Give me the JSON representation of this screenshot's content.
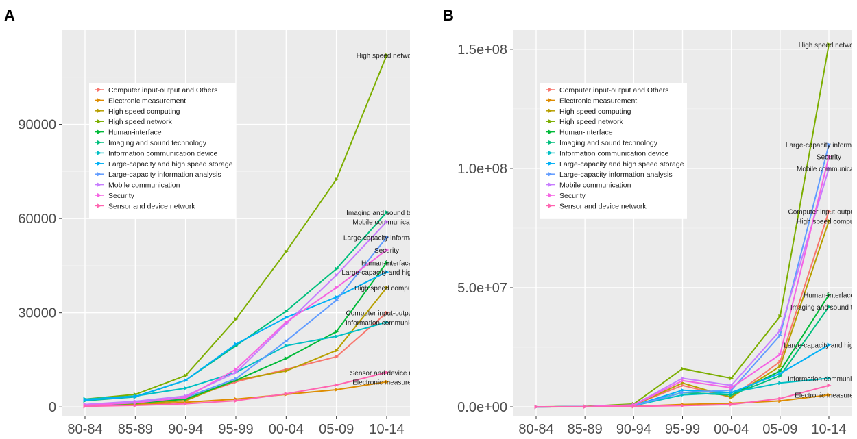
{
  "chart_data": [
    {
      "panel": "A",
      "type": "line",
      "categories": [
        "80-84",
        "85-89",
        "90-94",
        "95-99",
        "00-04",
        "05-09",
        "10-14"
      ],
      "ylim": [
        -3000,
        120000
      ],
      "yticks": [
        0,
        30000,
        60000,
        90000
      ],
      "ytick_labels": [
        "0",
        "30000",
        "60000",
        "90000"
      ],
      "grid": true,
      "legend": "top-left inside",
      "series": [
        {
          "name": "Computer input-output and Others",
          "color": "#f8766d",
          "label": "Computer input-output and",
          "values": [
            500,
            1200,
            2500,
            8000,
            12000,
            16000,
            30000
          ]
        },
        {
          "name": "Electronic measurement",
          "color": "#de8c00",
          "label": "Electronic measureme",
          "values": [
            300,
            700,
            1500,
            2500,
            4000,
            5500,
            8000
          ]
        },
        {
          "name": "High speed computing",
          "color": "#b79f00",
          "label": "High speed computin",
          "values": [
            400,
            1000,
            2000,
            8500,
            11500,
            18000,
            38000
          ]
        },
        {
          "name": "High speed network",
          "color": "#7cae00",
          "label": "High speed network",
          "values": [
            2500,
            4000,
            10000,
            28000,
            49500,
            72500,
            112000
          ]
        },
        {
          "name": "Human-interface",
          "color": "#00ba38",
          "label": "Human-interface",
          "values": [
            500,
            1200,
            2500,
            8500,
            15500,
            24000,
            46000
          ]
        },
        {
          "name": "Imaging and sound technology",
          "color": "#00bf7d",
          "label": "Imaging and sound techno",
          "values": [
            2000,
            3200,
            8500,
            19500,
            30500,
            44000,
            62000
          ]
        },
        {
          "name": "Information communication device",
          "color": "#00bfc4",
          "label": "Information communication",
          "values": [
            2500,
            3500,
            6000,
            11000,
            19500,
            22500,
            27000
          ]
        },
        {
          "name": "Large-capacity and high speed storage",
          "color": "#00b0f6",
          "label": "Large-capacity and high spee",
          "values": [
            2200,
            3300,
            8500,
            20000,
            28500,
            35000,
            43000
          ]
        },
        {
          "name": "Large-capacity information analysis",
          "color": "#619cff",
          "label": "Large-capacity information a",
          "values": [
            600,
            1500,
            3000,
            9000,
            21000,
            34000,
            54000
          ]
        },
        {
          "name": "Mobile communication",
          "color": "#c77cff",
          "label": "Mobile communication",
          "values": [
            800,
            1800,
            3500,
            11000,
            26500,
            42000,
            59000
          ]
        },
        {
          "name": "Security",
          "color": "#f564e3",
          "label": "Security",
          "values": [
            500,
            1300,
            3000,
            12000,
            27000,
            38000,
            50000
          ]
        },
        {
          "name": "Sensor and device network",
          "color": "#ff64b0",
          "label": "Sensor and device netw",
          "values": [
            200,
            500,
            1000,
            2000,
            4200,
            7000,
            11000
          ]
        }
      ]
    },
    {
      "panel": "B",
      "type": "line",
      "categories": [
        "80-84",
        "85-89",
        "90-94",
        "95-99",
        "00-04",
        "05-09",
        "10-14"
      ],
      "ylim": [
        -4000000,
        158000000
      ],
      "yticks": [
        0,
        50000000,
        100000000,
        150000000
      ],
      "ytick_labels": [
        "0.0e+00",
        "5.0e+07",
        "1.0e+08",
        "1.5e+08"
      ],
      "grid": true,
      "legend": "top-left inside",
      "series": [
        {
          "name": "Computer input-output and Others",
          "color": "#f8766d",
          "label": "Computer input-output and",
          "values": [
            0,
            100000,
            800000,
            9000000,
            4000000,
            19000000,
            82000000
          ]
        },
        {
          "name": "Electronic measurement",
          "color": "#de8c00",
          "label": "Electronic measureme",
          "values": [
            0,
            50000,
            200000,
            1000000,
            1500000,
            2500000,
            5000000
          ]
        },
        {
          "name": "High speed computing",
          "color": "#b79f00",
          "label": "High speed computin",
          "values": [
            0,
            100000,
            700000,
            10000000,
            4000000,
            17000000,
            78000000
          ]
        },
        {
          "name": "High speed network",
          "color": "#7cae00",
          "label": "High speed network",
          "values": [
            0,
            200000,
            1200000,
            16000000,
            12000000,
            38000000,
            152000000
          ]
        },
        {
          "name": "Human-interface",
          "color": "#00ba38",
          "label": "Human-interface",
          "values": [
            0,
            100000,
            600000,
            6000000,
            5000000,
            15000000,
            47000000
          ]
        },
        {
          "name": "Imaging and sound technology",
          "color": "#00bf7d",
          "label": "Imaging and sound techn",
          "values": [
            0,
            100000,
            500000,
            6000000,
            5000000,
            13000000,
            42000000
          ]
        },
        {
          "name": "Information communication device",
          "color": "#00bfc4",
          "label": "Information communication",
          "values": [
            0,
            100000,
            500000,
            5000000,
            6000000,
            10000000,
            12000000
          ]
        },
        {
          "name": "Large-capacity and high speed storage",
          "color": "#00b0f6",
          "label": "Large-capacity and high spee",
          "values": [
            0,
            100000,
            500000,
            7000000,
            6000000,
            14000000,
            26000000
          ]
        },
        {
          "name": "Large-capacity information analysis",
          "color": "#619cff",
          "label": "Large-capacity information a",
          "values": [
            0,
            100000,
            500000,
            6000000,
            7000000,
            30000000,
            110000000
          ]
        },
        {
          "name": "Mobile communication",
          "color": "#c77cff",
          "label": "Mobile communicatio",
          "values": [
            0,
            100000,
            800000,
            12000000,
            9000000,
            32000000,
            100000000
          ]
        },
        {
          "name": "Security",
          "color": "#f564e3",
          "label": "Security",
          "values": [
            0,
            100000,
            700000,
            11000000,
            8000000,
            22000000,
            105000000
          ]
        },
        {
          "name": "Sensor and device network",
          "color": "#ff64b0",
          "label": "",
          "values": [
            0,
            50000,
            200000,
            500000,
            1000000,
            3500000,
            9000000
          ]
        }
      ]
    }
  ]
}
